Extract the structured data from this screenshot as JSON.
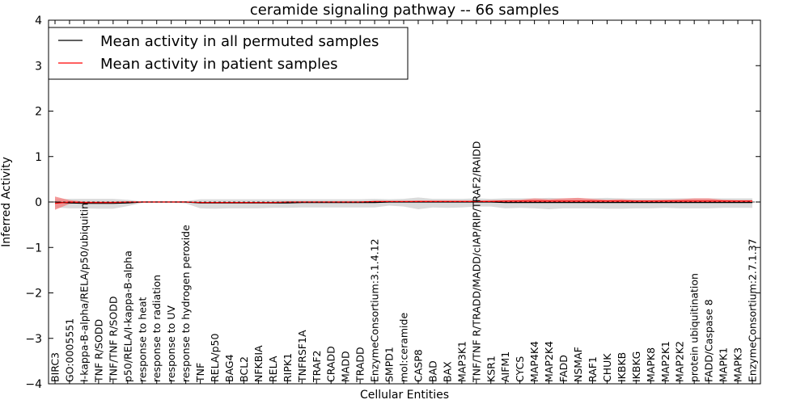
{
  "chart_data": {
    "type": "line",
    "title": "ceramide signaling pathway -- 66 samples",
    "xlabel": "Cellular Entities",
    "ylabel": "Inferred Activity",
    "ylim": [
      -4,
      4
    ],
    "yticks": [
      -4,
      -3,
      -2,
      -1,
      0,
      1,
      2,
      3,
      4
    ],
    "ytick_labels": [
      "−4",
      "−3",
      "−2",
      "−1",
      "0",
      "1",
      "2",
      "3",
      "4"
    ],
    "legend_position": "top-left",
    "categories": [
      "BIRC3",
      "GO:0005551",
      "I-kappa-B-alpha/RELA/p50/ubiquitin",
      "TNF R/SODD",
      "TNF/TNF R/SODD",
      "p50/RELA/I-kappa-B-alpha",
      "response to heat",
      "response to radiation",
      "response to UV",
      "response to hydrogen peroxide",
      "TNF",
      "RELA/p50",
      "BAG4",
      "BCL2",
      "NFKBIA",
      "RELA",
      "RIPK1",
      "TNFRSF1A",
      "TRAF2",
      "CRADD",
      "MADD",
      "TRADD",
      "EnzymeConsortium:3.1.4.12",
      "SMPD1",
      "mol:ceramide",
      "CASP8",
      "BAD",
      "BAX",
      "MAP3K1",
      "TNF/TNF R/TRADD/MADD/cIAP/RIP/TRAF2/RAIDD",
      "KSR1",
      "AIFM1",
      "CYCS",
      "MAP4K4",
      "MAP2K4",
      "FADD",
      "NSMAF",
      "RAF1",
      "CHUK",
      "IKBKB",
      "IKBKG",
      "MAPK8",
      "MAP2K1",
      "MAP2K2",
      "protein ubiquitination",
      "FADD/Caspase 8",
      "MAPK1",
      "MAPK3",
      "EnzymeConsortium:2.7.1.37"
    ],
    "series": [
      {
        "name": "Mean activity in all permuted samples",
        "color": "#000000",
        "band_color": "#bbbbbb",
        "values": [
          0.0,
          -0.02,
          -0.03,
          -0.03,
          -0.03,
          -0.02,
          0.0,
          0.0,
          0.0,
          0.0,
          -0.02,
          -0.02,
          -0.02,
          -0.02,
          -0.02,
          -0.02,
          -0.02,
          -0.01,
          -0.01,
          -0.01,
          -0.01,
          -0.01,
          -0.01,
          0.0,
          0.0,
          0.0,
          0.0,
          0.0,
          0.0,
          0.0,
          0.0,
          -0.01,
          -0.01,
          -0.01,
          -0.01,
          -0.01,
          -0.01,
          -0.01,
          -0.01,
          -0.01,
          -0.01,
          -0.01,
          -0.01,
          -0.01,
          -0.01,
          -0.01,
          -0.01,
          -0.01,
          -0.01
        ],
        "band_low": [
          -0.12,
          -0.14,
          -0.14,
          -0.15,
          -0.15,
          -0.09,
          -0.02,
          -0.01,
          -0.01,
          -0.03,
          -0.14,
          -0.15,
          -0.14,
          -0.14,
          -0.14,
          -0.13,
          -0.13,
          -0.12,
          -0.12,
          -0.12,
          -0.12,
          -0.12,
          -0.12,
          -0.08,
          -0.1,
          -0.16,
          -0.12,
          -0.13,
          -0.12,
          -0.1,
          -0.1,
          -0.14,
          -0.13,
          -0.14,
          -0.16,
          -0.14,
          -0.14,
          -0.14,
          -0.15,
          -0.15,
          -0.14,
          -0.14,
          -0.13,
          -0.14,
          -0.14,
          -0.14,
          -0.13,
          -0.13,
          -0.13
        ],
        "band_high": [
          0.06,
          0.07,
          0.07,
          0.07,
          0.07,
          0.05,
          0.01,
          0.01,
          0.01,
          0.02,
          0.06,
          0.06,
          0.06,
          0.06,
          0.06,
          0.06,
          0.06,
          0.06,
          0.06,
          0.06,
          0.06,
          0.06,
          0.07,
          0.06,
          0.07,
          0.1,
          0.07,
          0.07,
          0.07,
          0.08,
          0.07,
          0.08,
          0.08,
          0.08,
          0.09,
          0.08,
          0.08,
          0.08,
          0.09,
          0.08,
          0.08,
          0.08,
          0.08,
          0.08,
          0.08,
          0.08,
          0.08,
          0.08,
          0.08
        ]
      },
      {
        "name": "Mean activity in patient samples",
        "color": "#ff0000",
        "band_color": "#f28080",
        "values": [
          -0.03,
          0.0,
          -0.01,
          -0.01,
          -0.01,
          0.0,
          0.0,
          0.0,
          0.0,
          0.0,
          -0.01,
          -0.01,
          -0.01,
          -0.01,
          -0.01,
          -0.01,
          0.0,
          0.0,
          0.0,
          0.0,
          0.0,
          0.0,
          0.01,
          0.01,
          0.01,
          0.01,
          0.01,
          0.01,
          0.01,
          0.01,
          0.01,
          0.02,
          0.02,
          0.02,
          0.02,
          0.02,
          0.02,
          0.02,
          0.02,
          0.02,
          0.02,
          0.02,
          0.02,
          0.02,
          0.02,
          0.02,
          0.02,
          0.02,
          0.02
        ],
        "band_low": [
          -0.17,
          -0.04,
          -0.02,
          -0.02,
          -0.02,
          -0.01,
          0.0,
          0.0,
          0.0,
          0.0,
          -0.01,
          -0.01,
          -0.01,
          -0.01,
          -0.01,
          -0.01,
          -0.01,
          -0.01,
          -0.01,
          -0.01,
          -0.01,
          -0.01,
          0.0,
          0.0,
          0.0,
          0.0,
          0.0,
          0.0,
          0.0,
          0.0,
          0.0,
          0.0,
          0.0,
          -0.01,
          -0.01,
          -0.01,
          -0.01,
          0.0,
          0.0,
          -0.01,
          0.0,
          0.0,
          0.0,
          -0.01,
          -0.01,
          0.0,
          0.0,
          0.0,
          0.0
        ],
        "band_high": [
          0.12,
          0.04,
          0.01,
          0.01,
          0.01,
          0.01,
          0.0,
          0.0,
          0.0,
          0.0,
          0.0,
          0.0,
          0.0,
          0.0,
          0.0,
          0.0,
          0.0,
          0.01,
          0.01,
          0.01,
          0.01,
          0.01,
          0.02,
          0.02,
          0.02,
          0.03,
          0.03,
          0.03,
          0.03,
          0.03,
          0.04,
          0.04,
          0.05,
          0.08,
          0.06,
          0.08,
          0.09,
          0.07,
          0.05,
          0.06,
          0.04,
          0.04,
          0.05,
          0.06,
          0.08,
          0.08,
          0.05,
          0.04,
          0.04
        ]
      }
    ]
  }
}
